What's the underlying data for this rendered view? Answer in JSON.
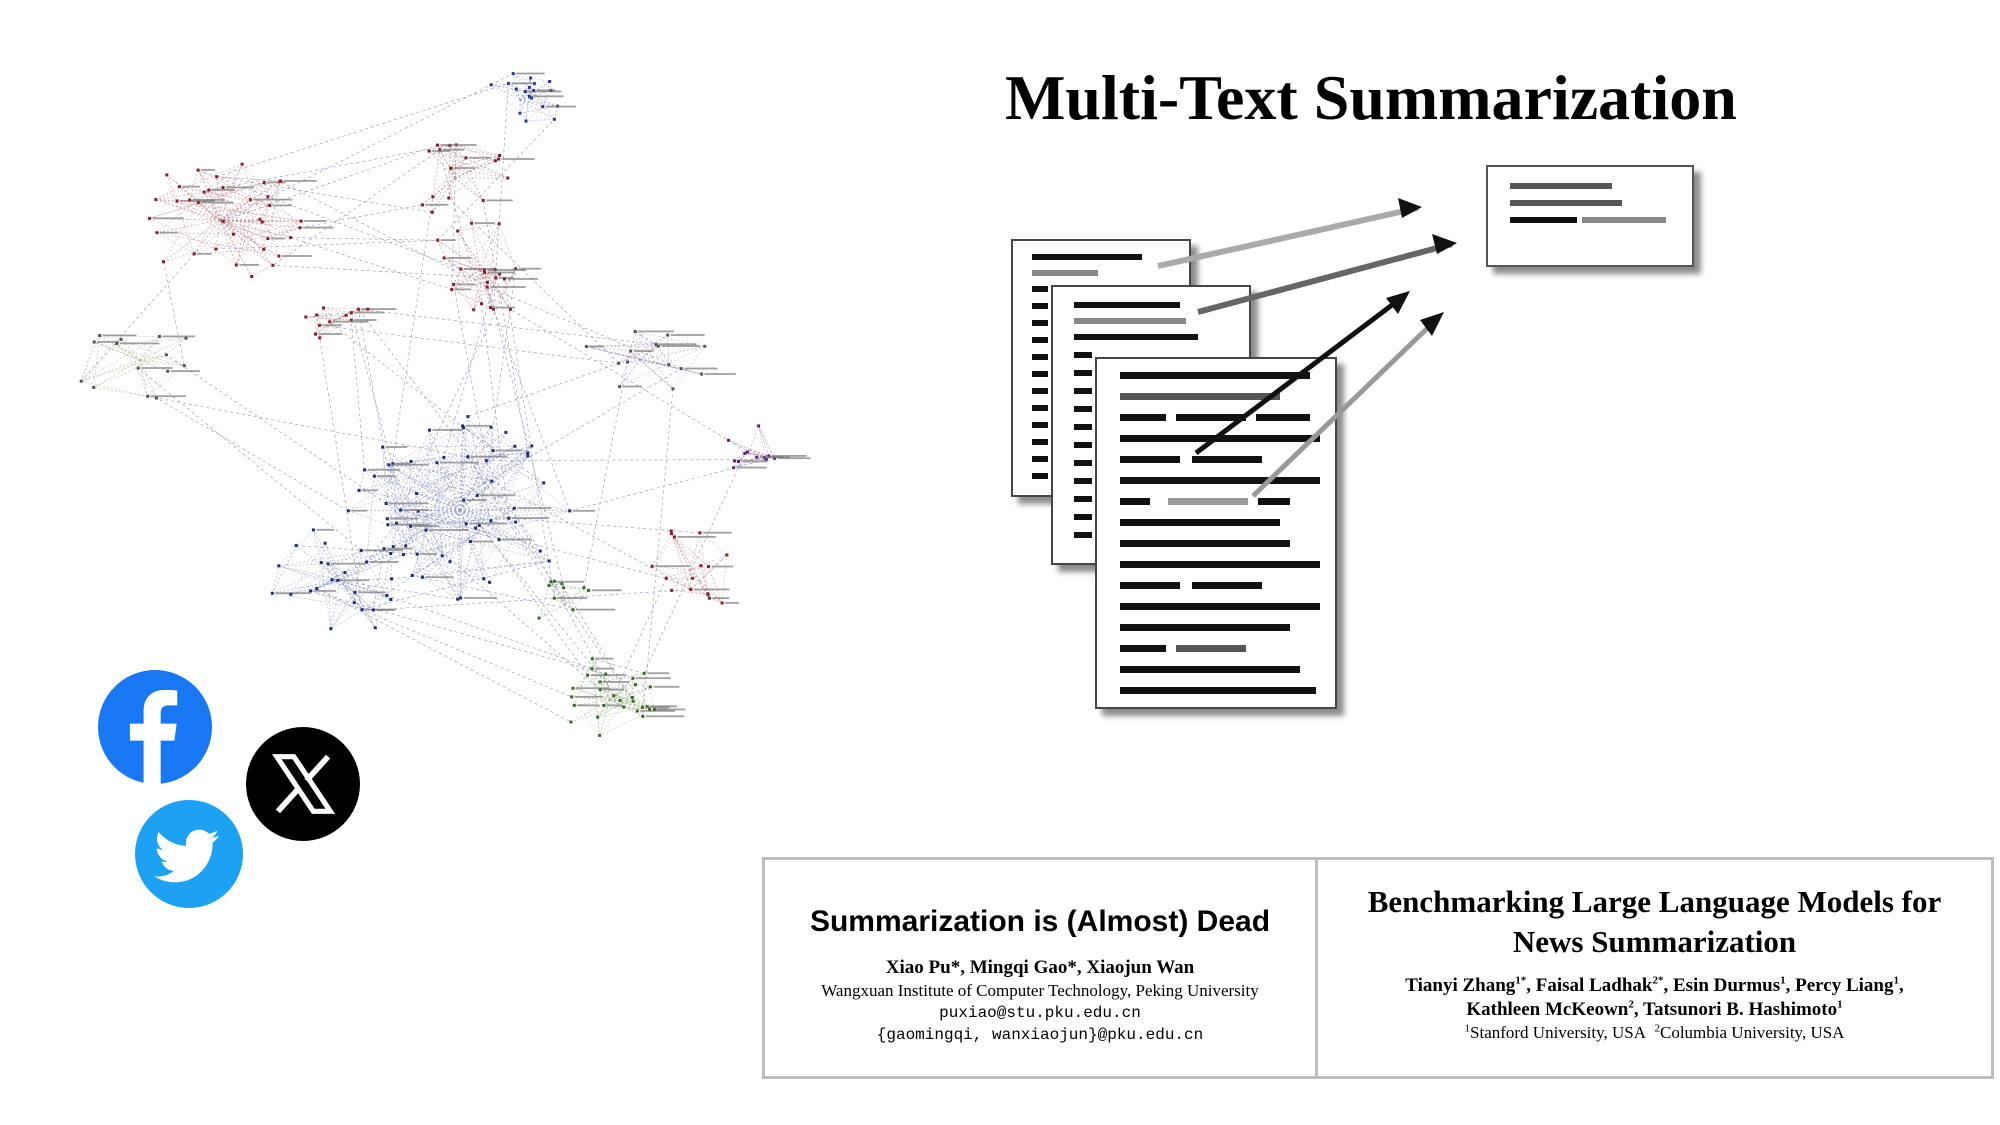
{
  "title": "Multi-Text Summarization",
  "icons": {
    "facebook": "facebook-icon",
    "twitter": "twitter-icon",
    "x": "x-icon",
    "facebook_color": "#1877F2",
    "twitter_color": "#1DA1F2",
    "x_color": "#000000"
  },
  "papers": [
    {
      "title": "Summarization is (Almost) Dead",
      "authors": "Xiao Pu*, Mingqi Gao*, Xiaojun Wan",
      "affiliation": "Wangxuan Institute of Computer Technology, Peking University",
      "email1": "puxiao@stu.pku.edu.cn",
      "email2": "{gaomingqi, wanxiaojun}@pku.edu.cn"
    },
    {
      "title_line1": "Benchmarking Large Language Models for",
      "title_line2": "News Summarization",
      "author1": "Tianyi Zhang",
      "author1_sup": "1*",
      "author2": "Faisal Ladhak",
      "author2_sup": "2*",
      "author3": "Esin Durmus",
      "author3_sup": "1",
      "author4": "Percy Liang",
      "author4_sup": "1",
      "author5": "Kathleen McKeown",
      "author5_sup": "2",
      "author6": "Tatsunori B. Hashimoto",
      "author6_sup": "1",
      "aff1_sup": "1",
      "aff1": "Stanford University, USA",
      "aff2_sup": "2",
      "aff2": "Columbia University, USA"
    }
  ]
}
